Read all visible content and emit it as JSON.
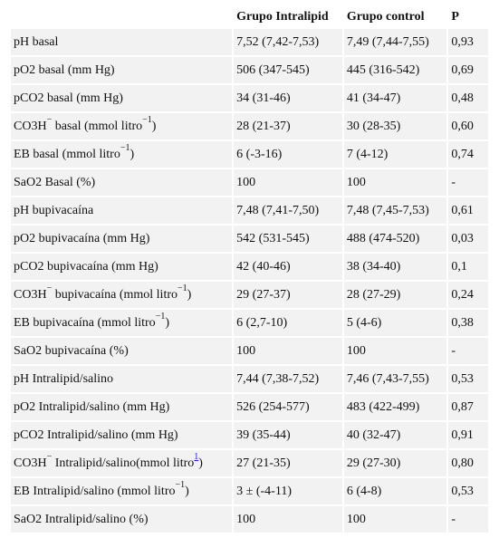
{
  "header": {
    "col0": "",
    "col1": "Grupo Intralipid",
    "col2": "Grupo control",
    "col3": "P"
  },
  "rows": [
    {
      "label": "pH basal",
      "g1": "7,52 (7,42-7,53)",
      "g2": "7,49 (7,44-7,55)",
      "p": "0,93"
    },
    {
      "label": "pO2 basal (mm Hg)",
      "g1": "506 (347-545)",
      "g2": "445 (316-542)",
      "p": "0,69"
    },
    {
      "label": "pCO2 basal (mm Hg)",
      "g1": "34 (31-46)",
      "g2": "41 (34-47)",
      "p": "0,48"
    },
    {
      "label_pre": "CO3H",
      "label_sup1": "−",
      "label_mid": " basal (mmol litro",
      "label_sup2": "−1",
      "label_post": ")",
      "g1": "28 (21-37)",
      "g2": "30 (28-35)",
      "p": "0,60"
    },
    {
      "label_pre": "EB basal (mmol litro",
      "label_sup": "−1",
      "label_post": ")",
      "g1": "6 (-3-16)",
      "g2": "7 (4-12)",
      "p": "0,74"
    },
    {
      "label": "SaO2 Basal (%)",
      "g1": "100",
      "g2": "100",
      "p": "-"
    },
    {
      "label": "pH bupivacaína",
      "g1": "7,48 (7,41-7,50)",
      "g2": "7,48 (7,45-7,53)",
      "p": "0,61"
    },
    {
      "label": "pO2 bupivacaína (mm Hg)",
      "g1": "542 (531-545)",
      "g2": "488 (474-520)",
      "p": "0,03"
    },
    {
      "label": "pCO2 bupivacaína (mm Hg)",
      "g1": "42 (40-46)",
      "g2": "38 (34-40)",
      "p": "0,1"
    },
    {
      "label_pre": "CO3H",
      "label_sup1": "−",
      "label_mid": " bupivacaína (mmol litro",
      "label_sup2": "−1",
      "label_post": ")",
      "g1": "29 (27-37)",
      "g2": "28 (27-29)",
      "p": "0,24"
    },
    {
      "label_pre": "EB bupivacaína (mmol litro",
      "label_sup": "−1",
      "label_post": ")",
      "g1": "6 (2,7-10)",
      "g2": "5 (4-6)",
      "p": "0,38"
    },
    {
      "label": "SaO2 bupivacaína (%)",
      "g1": "100",
      "g2": "100",
      "p": "-"
    },
    {
      "label": "pH Intralipid/salino",
      "g1": "7,44 (7,38-7,52)",
      "g2": "7,46 (7,43-7,55)",
      "p": "0,53"
    },
    {
      "label": "pO2 Intralipid/salino (mm Hg)",
      "g1": "526 (254-577)",
      "g2": "483 (422-499)",
      "p": "0,87"
    },
    {
      "label": "pCO2 Intralipid/salino (mm Hg)",
      "g1": "39 (35-44)",
      "g2": "40 (32-47)",
      "p": "0,91"
    },
    {
      "label_pre": "CO3H",
      "label_sup1": "−",
      "label_mid": " Intralipid/salino(mmol litro",
      "label_link": "1",
      "label_post": ")",
      "g1": "27 (21-35)",
      "g2": "29 (27-30)",
      "p": "0,80"
    },
    {
      "label_pre": "EB Intralipid/salino (mmol litro",
      "label_sup": "−1",
      "label_post": ")",
      "g1": "3 ± (-4-11)",
      "g2": "6 (4-8)",
      "p": "0,53"
    },
    {
      "label": "SaO2 Intralipid/salino (%)",
      "g1": "100",
      "g2": "100",
      "p": "-"
    }
  ]
}
